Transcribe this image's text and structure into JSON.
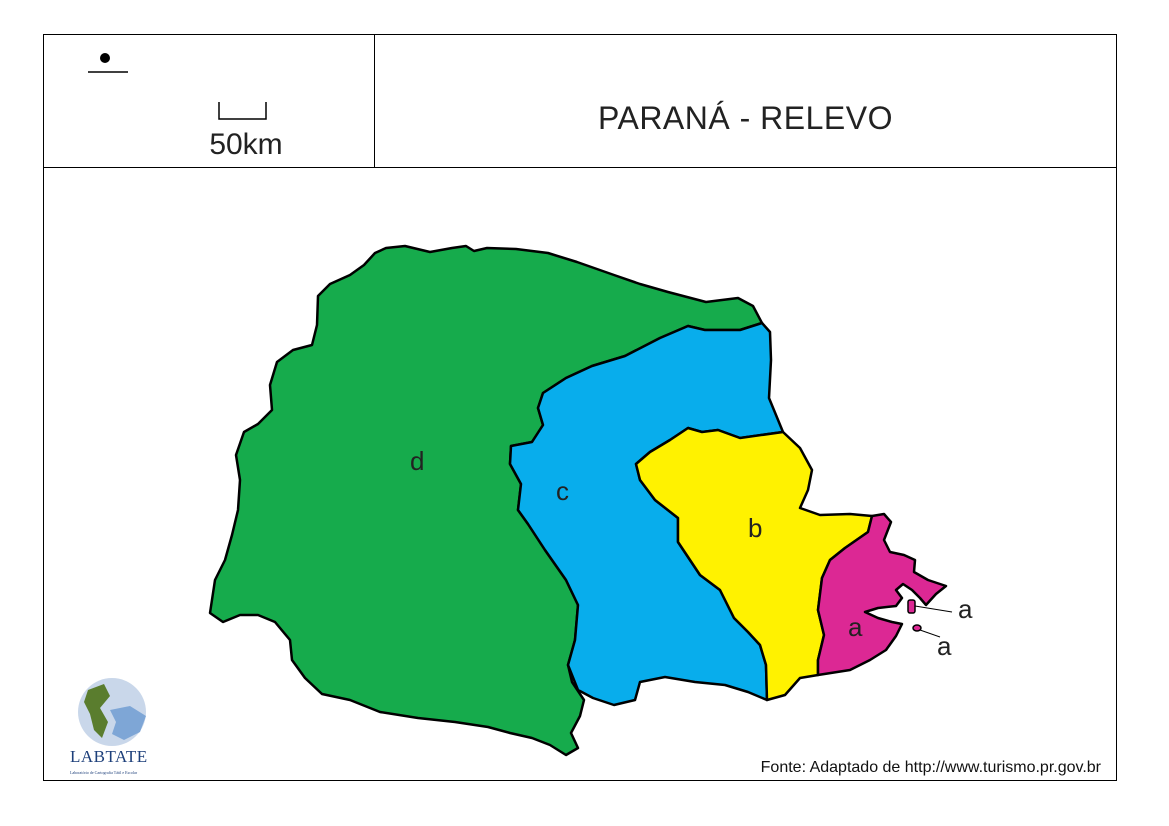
{
  "header": {
    "title": "PARANÁ - RELEVO",
    "scale_label": "50km"
  },
  "map": {
    "regions": [
      {
        "id": "d",
        "label": "d",
        "color": "#16ab4c"
      },
      {
        "id": "c",
        "label": "c",
        "color": "#08adec"
      },
      {
        "id": "b",
        "label": "b",
        "color": "#fff200"
      },
      {
        "id": "a",
        "label": "a",
        "color": "#dc2894"
      }
    ],
    "island_labels": [
      "a",
      "a"
    ]
  },
  "footer": {
    "source": "Fonte: Adaptado de http://www.turismo.pr.gov.br",
    "logo_name": "LABTATE",
    "logo_subtitle": "Laboratório de Cartografia Tátil e Escolar"
  }
}
